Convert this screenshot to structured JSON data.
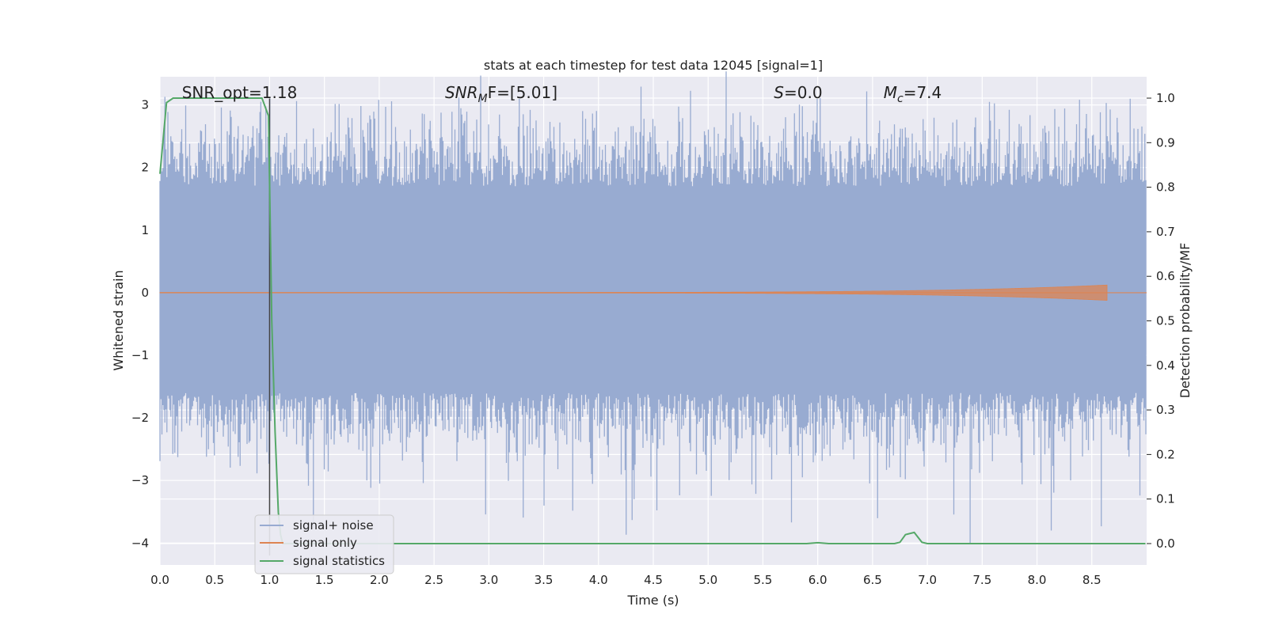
{
  "chart_data": {
    "type": "line",
    "title": "stats at each timestep for test data 12045 [signal=1]",
    "xlabel": "Time (s)",
    "ylabel": "Whitened strain",
    "y2label": "Detection probability/MF",
    "xlim": [
      0,
      9
    ],
    "ylim": [
      -4.35,
      3.45
    ],
    "y2lim": [
      -0.048,
      1.048
    ],
    "xticks": [
      "0.0",
      "0.5",
      "1.0",
      "1.5",
      "2.0",
      "2.5",
      "3.0",
      "3.5",
      "4.0",
      "4.5",
      "5.0",
      "5.5",
      "6.0",
      "6.5",
      "7.0",
      "7.5",
      "8.0",
      "8.5"
    ],
    "yticks": [
      "−4",
      "−3",
      "−2",
      "−1",
      "0",
      "1",
      "2",
      "3"
    ],
    "y2ticks": [
      "0.0",
      "0.1",
      "0.2",
      "0.3",
      "0.4",
      "0.5",
      "0.6",
      "0.7",
      "0.8",
      "0.9",
      "1.0"
    ],
    "grid": true,
    "legend_position": "lower-left",
    "annotations": [
      {
        "name": "snr-opt",
        "text": "SNR_opt=1.18",
        "x": 0.2
      },
      {
        "name": "snr-mf",
        "prefix": "SNR",
        "sub": "M",
        "suffix": "F=[5.01]",
        "x": 2.6
      },
      {
        "name": "s-stat",
        "prefix": "S",
        "sub": "",
        "suffix": "=0.0",
        "x": 5.6
      },
      {
        "name": "chirp-mass",
        "prefix": "M",
        "sub": "c",
        "suffix": "=7.4",
        "x": 6.6
      }
    ],
    "series": [
      {
        "name": "signal+ noise",
        "color": "#98abd1",
        "kind": "noise",
        "x_range": [
          0,
          9
        ],
        "typical_band": [
          -1.7,
          1.8
        ],
        "extremes": {
          "max": 3.1,
          "min": -4.0
        }
      },
      {
        "name": "signal only",
        "color": "#dd8452",
        "kind": "chirp",
        "x_range": [
          0,
          8.65
        ],
        "peak_amplitude": 0.12
      },
      {
        "name": "signal statistics",
        "color": "#55a868",
        "kind": "probability",
        "axis": "right",
        "x": [
          0,
          0.06,
          0.12,
          0.2,
          0.4,
          0.6,
          0.8,
          0.93,
          0.99,
          1.02,
          1.05,
          1.08,
          1.1,
          1.12,
          1.2,
          1.5,
          2.0,
          3.0,
          4.0,
          5.0,
          5.9,
          6.0,
          6.1,
          6.5,
          6.7,
          6.75,
          6.8,
          6.88,
          6.95,
          7.0,
          7.5,
          8.0,
          8.5,
          8.99
        ],
        "y": [
          0.83,
          0.99,
          1.0,
          1.0,
          1.0,
          1.0,
          1.0,
          1.0,
          0.96,
          0.5,
          0.25,
          0.07,
          0.02,
          0.0,
          0.0,
          0.0,
          0.0,
          0.0,
          0.0,
          0.0,
          0.0,
          0.002,
          0.0,
          0.0,
          0.0,
          0.003,
          0.02,
          0.025,
          0.003,
          0.0,
          0.0,
          0.0,
          0.0,
          0.0
        ]
      }
    ],
    "vertical_marker": {
      "x": 1.0,
      "color": "#444444"
    }
  }
}
